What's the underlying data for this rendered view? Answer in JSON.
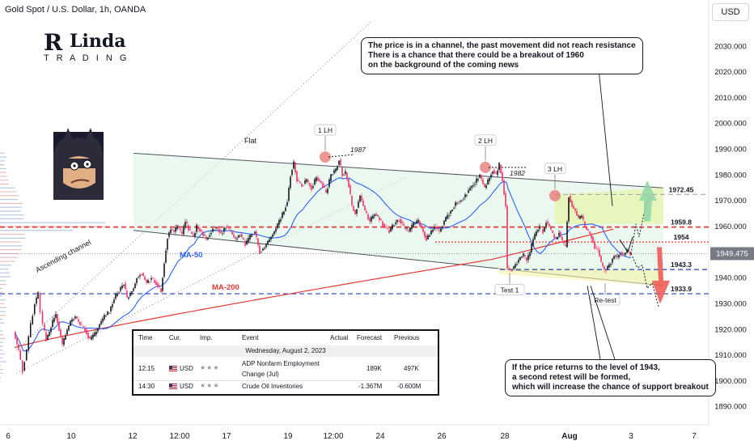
{
  "symbol_title": "Gold Spot / U.S. Dollar, 1h, OANDA",
  "currency_button": "USD",
  "logo": {
    "text": "Linda TRADING"
  },
  "chart_data": {
    "type": "line",
    "ylim": [
      1883,
      2048
    ],
    "y_ticks": [
      1890,
      1900,
      1910,
      1920,
      1930,
      1940,
      1950,
      1960,
      1970,
      1980,
      1990,
      2000,
      2010,
      2020,
      2030
    ],
    "y_tick_labels": [
      "1890.000",
      "1900.000",
      "1910.000",
      "1920.000",
      "1930.000",
      "1940.000",
      "1950.000",
      "1960.000",
      "1970.000",
      "1980.000",
      "1990.000",
      "2000.000",
      "2010.000",
      "2020.000",
      "2030.000"
    ],
    "x_ticks": [
      "6",
      "10",
      "12",
      "12:00",
      "17",
      "19",
      "12:00",
      "24",
      "26",
      "28",
      "Aug",
      "3",
      "7"
    ],
    "current_price": "1949.475",
    "levels": [
      {
        "label": "1972.45",
        "value": 1972.45,
        "color": "#b0b0b0",
        "style": "dashed"
      },
      {
        "label": "1959.8",
        "value": 1959.8,
        "color": "#e53935",
        "style": "dashed"
      },
      {
        "label": "1954",
        "value": 1954,
        "color": "#e53935",
        "style": "dotted"
      },
      {
        "label": "1943.3",
        "value": 1943.3,
        "color": "#1e40c0",
        "style": "dashed"
      },
      {
        "label": "1933.9",
        "value": 1933.9,
        "color": "#1e40c0",
        "style": "dashed"
      }
    ],
    "series": [
      {
        "name": "MA-50",
        "color": "#2962ff"
      },
      {
        "name": "MA-200",
        "color": "#e53935"
      }
    ],
    "price_path": [
      [
        0,
        1919
      ],
      [
        6,
        1912
      ],
      [
        11,
        1904
      ],
      [
        16,
        1912
      ],
      [
        21,
        1922
      ],
      [
        26,
        1930
      ],
      [
        30,
        1934
      ],
      [
        33,
        1927
      ],
      [
        36,
        1922
      ],
      [
        40,
        1916
      ],
      [
        44,
        1919
      ],
      [
        48,
        1923
      ],
      [
        52,
        1926
      ],
      [
        56,
        1920
      ],
      [
        60,
        1914
      ],
      [
        64,
        1918
      ],
      [
        70,
        1923
      ],
      [
        76,
        1925
      ],
      [
        82,
        1922
      ],
      [
        88,
        1920
      ],
      [
        94,
        1916
      ],
      [
        100,
        1918
      ],
      [
        106,
        1922
      ],
      [
        112,
        1925
      ],
      [
        118,
        1927
      ],
      [
        124,
        1932
      ],
      [
        130,
        1935
      ],
      [
        136,
        1938
      ],
      [
        140,
        1932
      ],
      [
        144,
        1934
      ],
      [
        148,
        1936
      ],
      [
        152,
        1940
      ],
      [
        158,
        1942
      ],
      [
        164,
        1938
      ],
      [
        170,
        1940
      ],
      [
        176,
        1938
      ],
      [
        182,
        1935
      ],
      [
        186,
        1946
      ],
      [
        190,
        1956
      ],
      [
        194,
        1959
      ],
      [
        198,
        1958
      ],
      [
        202,
        1960
      ],
      [
        208,
        1957
      ],
      [
        212,
        1962
      ],
      [
        216,
        1959
      ],
      [
        222,
        1956
      ],
      [
        226,
        1960
      ],
      [
        232,
        1958
      ],
      [
        238,
        1955
      ],
      [
        244,
        1958
      ],
      [
        250,
        1960
      ],
      [
        256,
        1957
      ],
      [
        262,
        1960
      ],
      [
        268,
        1958
      ],
      [
        274,
        1955
      ],
      [
        280,
        1957
      ],
      [
        286,
        1953
      ],
      [
        292,
        1956
      ],
      [
        298,
        1958
      ],
      [
        304,
        1950
      ],
      [
        310,
        1952
      ],
      [
        316,
        1955
      ],
      [
        322,
        1958
      ],
      [
        328,
        1962
      ],
      [
        334,
        1966
      ],
      [
        338,
        1970
      ],
      [
        342,
        1980
      ],
      [
        346,
        1985
      ],
      [
        350,
        1978
      ],
      [
        356,
        1976
      ],
      [
        362,
        1978
      ],
      [
        368,
        1975
      ],
      [
        374,
        1979
      ],
      [
        380,
        1977
      ],
      [
        386,
        1973
      ],
      [
        392,
        1980
      ],
      [
        398,
        1982
      ],
      [
        402,
        1986
      ],
      [
        406,
        1980
      ],
      [
        410,
        1981
      ],
      [
        414,
        1976
      ],
      [
        418,
        1968
      ],
      [
        422,
        1965
      ],
      [
        428,
        1972
      ],
      [
        434,
        1966
      ],
      [
        440,
        1962
      ],
      [
        446,
        1965
      ],
      [
        452,
        1963
      ],
      [
        458,
        1960
      ],
      [
        464,
        1958
      ],
      [
        470,
        1961
      ],
      [
        476,
        1963
      ],
      [
        482,
        1960
      ],
      [
        488,
        1958
      ],
      [
        494,
        1961
      ],
      [
        500,
        1962
      ],
      [
        506,
        1958
      ],
      [
        510,
        1955
      ],
      [
        514,
        1957
      ],
      [
        520,
        1960
      ],
      [
        526,
        1958
      ],
      [
        532,
        1962
      ],
      [
        536,
        1964
      ],
      [
        540,
        1966
      ],
      [
        546,
        1969
      ],
      [
        552,
        1970
      ],
      [
        558,
        1972
      ],
      [
        564,
        1975
      ],
      [
        570,
        1977
      ],
      [
        576,
        1980
      ],
      [
        582,
        1975
      ],
      [
        588,
        1979
      ],
      [
        592,
        1982
      ],
      [
        596,
        1980
      ],
      [
        600,
        1984
      ],
      [
        604,
        1978
      ],
      [
        608,
        1968
      ],
      [
        610,
        1944
      ],
      [
        614,
        1943
      ],
      [
        618,
        1944
      ],
      [
        622,
        1946
      ],
      [
        626,
        1948
      ],
      [
        630,
        1949
      ],
      [
        634,
        1947
      ],
      [
        638,
        1950
      ],
      [
        642,
        1955
      ],
      [
        646,
        1958
      ],
      [
        650,
        1960
      ],
      [
        654,
        1958
      ],
      [
        658,
        1962
      ],
      [
        662,
        1960
      ],
      [
        666,
        1957
      ],
      [
        670,
        1955
      ],
      [
        674,
        1958
      ],
      [
        678,
        1954
      ],
      [
        682,
        1952
      ],
      [
        686,
        1972
      ],
      [
        690,
        1968
      ],
      [
        694,
        1966
      ],
      [
        698,
        1963
      ],
      [
        702,
        1964
      ],
      [
        706,
        1960
      ],
      [
        710,
        1958
      ],
      [
        714,
        1956
      ],
      [
        718,
        1952
      ],
      [
        722,
        1951
      ],
      [
        726,
        1946
      ],
      [
        730,
        1943
      ],
      [
        734,
        1944
      ],
      [
        738,
        1946
      ],
      [
        742,
        1949
      ],
      [
        746,
        1948
      ],
      [
        750,
        1950
      ],
      [
        754,
        1949
      ],
      [
        758,
        1951
      ],
      [
        762,
        1949.5
      ]
    ],
    "annotations": [
      {
        "text": "Flat"
      },
      {
        "text": "1 LH"
      },
      {
        "text": "2 LH"
      },
      {
        "text": "3 LH"
      },
      {
        "text": "1987"
      },
      {
        "text": "1982"
      },
      {
        "text": "Test 1"
      },
      {
        "text": "Re-test"
      },
      {
        "text": "Ascending channel"
      },
      {
        "text": "MA-50"
      },
      {
        "text": "MA-200"
      }
    ]
  },
  "callouts": {
    "top": {
      "lines": [
        "The price is in a channel, the past movement did not reach resistance",
        "There is a chance that there could be a breakout of 1960",
        "on the background of the coming news"
      ]
    },
    "bottom": {
      "lines": [
        "If the price returns to the level of 1943,",
        "a second retest will be formed,",
        "which will increase the chance of support breakout"
      ]
    }
  },
  "events_table": {
    "headers": {
      "time": "Time",
      "cur": "Cur.",
      "imp": "Imp.",
      "event": "Event",
      "actual": "Actual",
      "forecast": "Forecast",
      "previous": "Previous"
    },
    "date": "Wednesday, August 2, 2023",
    "rows": [
      {
        "time": "12:15",
        "cur": "USD",
        "event_line1": "ADP Nonfarm Employment",
        "event_line2": "Change (Jul)",
        "actual": "",
        "forecast": "189K",
        "previous": "497K"
      },
      {
        "time": "14:30",
        "cur": "USD",
        "event_line1": "Crude Oil Inventories",
        "event_line2": "",
        "actual": "",
        "forecast": "-1.367M",
        "previous": "-0.600M"
      }
    ]
  }
}
